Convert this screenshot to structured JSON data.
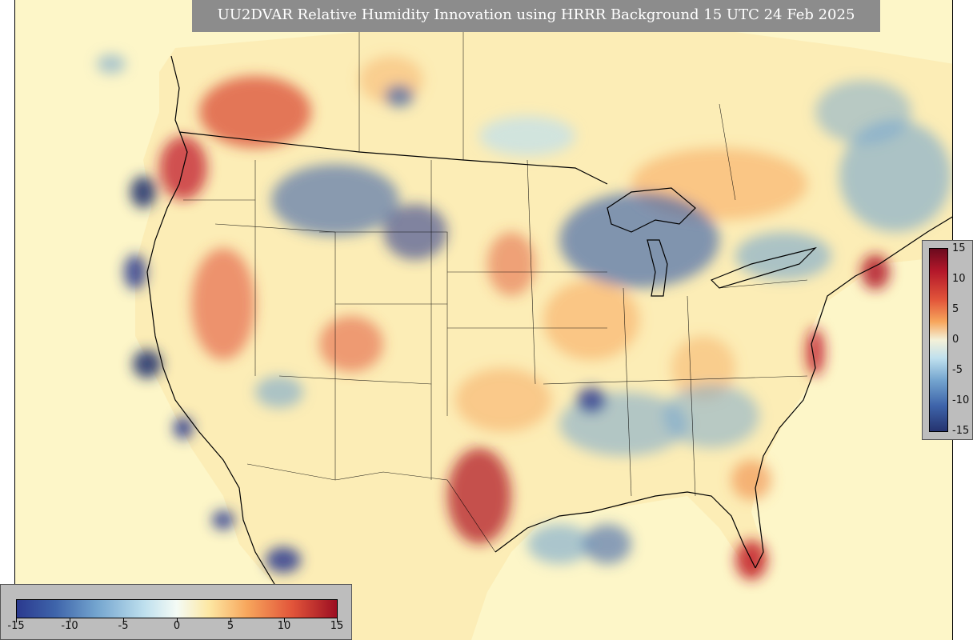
{
  "title": "UU2DVAR Relative Humidity Innovation using HRRR Background 15 UTC 24 Feb 2025",
  "colorbar": {
    "ticks": [
      "-15",
      "-10",
      "-5",
      "0",
      "5",
      "10",
      "15"
    ],
    "range": [
      -15,
      15
    ],
    "colors": {
      "min": "#2b3a8f",
      "mid": "#f4fbf5",
      "max": "#9c0e22"
    }
  },
  "map": {
    "background_color": "#fdf6c8",
    "land_outline_color": "#000000"
  }
}
